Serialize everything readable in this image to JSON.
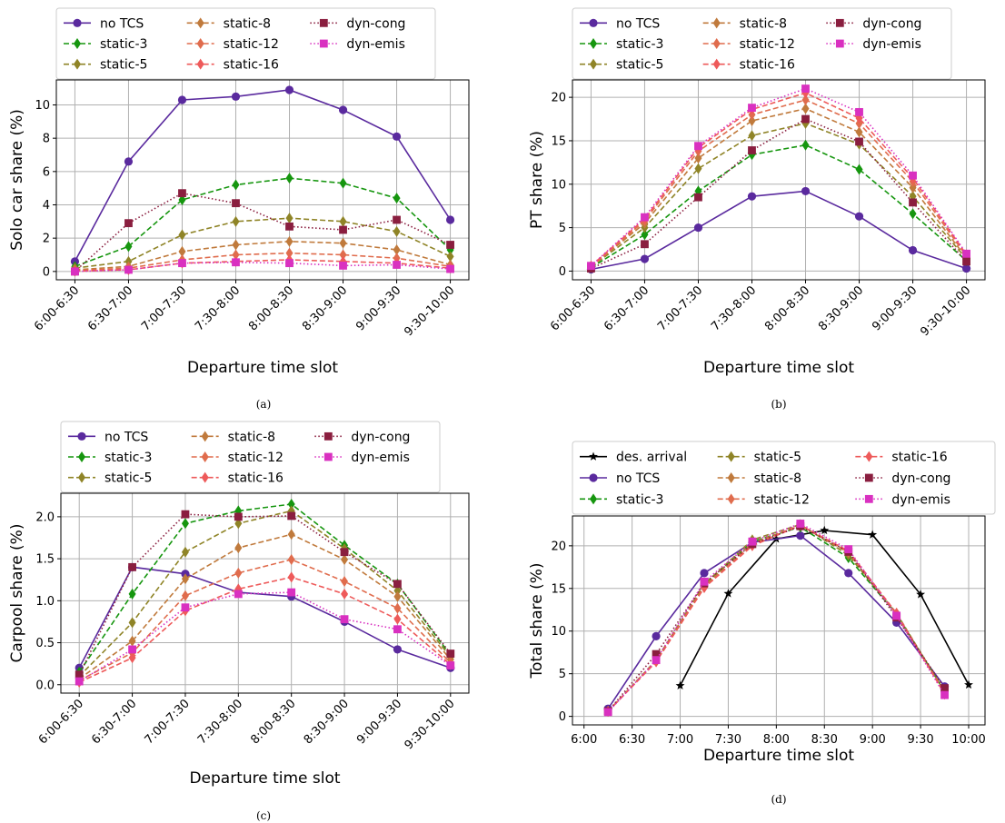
{
  "chart_data": [
    {
      "id": "a",
      "type": "line",
      "caption": "(a)",
      "xlabel": "Departure time slot",
      "ylabel": "Solo car share (%)",
      "categories": [
        "6:00-6:30",
        "6:30-7:00",
        "7:00-7:30",
        "7:30-8:00",
        "8:00-8:30",
        "8:30-9:00",
        "9:00-9:30",
        "9:30-10:00"
      ],
      "ylim": [
        -0.5,
        11.5
      ],
      "yticks": [
        0,
        2,
        4,
        6,
        8,
        10
      ],
      "yticklabels": [
        "0",
        "2",
        "4",
        "6",
        "8",
        "10"
      ],
      "grid": true,
      "legend_cols": 3,
      "series": [
        {
          "name": "no TCS",
          "color": "#5a2a9e",
          "dash": "solid",
          "marker": "circle",
          "values": [
            0.6,
            6.6,
            10.3,
            10.5,
            10.9,
            9.7,
            8.1,
            3.1
          ]
        },
        {
          "name": "static-3",
          "color": "#16960f",
          "dash": "dashed",
          "marker": "diamond",
          "values": [
            0.3,
            1.5,
            4.3,
            5.2,
            5.6,
            5.3,
            4.4,
            1.3
          ]
        },
        {
          "name": "static-5",
          "color": "#8f8427",
          "dash": "dashed",
          "marker": "diamond",
          "values": [
            0.2,
            0.6,
            2.2,
            3.0,
            3.2,
            3.0,
            2.4,
            0.9
          ]
        },
        {
          "name": "static-8",
          "color": "#c07a3c",
          "dash": "dashed",
          "marker": "diamond",
          "values": [
            0.1,
            0.3,
            1.2,
            1.6,
            1.8,
            1.7,
            1.3,
            0.4
          ]
        },
        {
          "name": "static-12",
          "color": "#e06c4d",
          "dash": "dashed",
          "marker": "diamond",
          "values": [
            0.05,
            0.2,
            0.7,
            1.0,
            1.1,
            1.0,
            0.8,
            0.3
          ]
        },
        {
          "name": "static-16",
          "color": "#ee5a5a",
          "dash": "dashed",
          "marker": "diamond",
          "values": [
            0.02,
            0.1,
            0.5,
            0.6,
            0.7,
            0.6,
            0.5,
            0.2
          ]
        },
        {
          "name": "dyn-cong",
          "color": "#8a1e3f",
          "dash": "dotted",
          "marker": "square",
          "values": [
            0.0,
            2.9,
            4.7,
            4.1,
            2.7,
            2.5,
            3.1,
            1.6
          ]
        },
        {
          "name": "dyn-emis",
          "color": "#d930c0",
          "dash": "dotted",
          "marker": "square",
          "values": [
            0.0,
            0.1,
            0.5,
            0.55,
            0.5,
            0.35,
            0.4,
            0.15
          ]
        }
      ]
    },
    {
      "id": "b",
      "type": "line",
      "caption": "(b)",
      "xlabel": "Departure time slot",
      "ylabel": "PT share (%)",
      "categories": [
        "6:00-6:30",
        "6:30-7:00",
        "7:00-7:30",
        "7:30-8:00",
        "8:00-8:30",
        "8:30-9:00",
        "9:00-9:30",
        "9:30-10:00"
      ],
      "ylim": [
        -1,
        22
      ],
      "yticks": [
        0,
        5,
        10,
        15,
        20
      ],
      "yticklabels": [
        "0",
        "5",
        "10",
        "15",
        "20"
      ],
      "grid": true,
      "legend_cols": 3,
      "series": [
        {
          "name": "no TCS",
          "color": "#5a2a9e",
          "dash": "solid",
          "marker": "circle",
          "values": [
            0.2,
            1.4,
            5.0,
            8.6,
            9.2,
            6.3,
            2.4,
            0.3
          ]
        },
        {
          "name": "static-3",
          "color": "#16960f",
          "dash": "dashed",
          "marker": "diamond",
          "values": [
            0.4,
            4.2,
            9.2,
            13.4,
            14.5,
            11.7,
            6.6,
            1.2
          ]
        },
        {
          "name": "static-5",
          "color": "#8f8427",
          "dash": "dashed",
          "marker": "diamond",
          "values": [
            0.5,
            5.0,
            11.8,
            15.6,
            17.0,
            14.6,
            8.6,
            1.4
          ]
        },
        {
          "name": "static-8",
          "color": "#c07a3c",
          "dash": "dashed",
          "marker": "diamond",
          "values": [
            0.5,
            5.5,
            13.0,
            17.3,
            18.7,
            16.0,
            9.6,
            1.5
          ]
        },
        {
          "name": "static-12",
          "color": "#e06c4d",
          "dash": "dashed",
          "marker": "diamond",
          "values": [
            0.5,
            5.8,
            13.8,
            18.0,
            19.7,
            17.0,
            10.3,
            1.7
          ]
        },
        {
          "name": "static-16",
          "color": "#ee5a5a",
          "dash": "dashed",
          "marker": "diamond",
          "values": [
            0.6,
            6.0,
            14.2,
            18.6,
            20.5,
            17.6,
            10.7,
            1.9
          ]
        },
        {
          "name": "dyn-cong",
          "color": "#8a1e3f",
          "dash": "dotted",
          "marker": "square",
          "values": [
            0.3,
            3.1,
            8.5,
            13.9,
            17.5,
            14.9,
            7.9,
            1.1
          ]
        },
        {
          "name": "dyn-emis",
          "color": "#d930c0",
          "dash": "dotted",
          "marker": "square",
          "values": [
            0.6,
            6.2,
            14.4,
            18.8,
            21.0,
            18.3,
            11.0,
            2.0
          ]
        }
      ]
    },
    {
      "id": "c",
      "type": "line",
      "caption": "(c)",
      "xlabel": "Departure time slot",
      "ylabel": "Carpool share (%)",
      "categories": [
        "6:00-6:30",
        "6:30-7:00",
        "7:00-7:30",
        "7:30-8:00",
        "8:00-8:30",
        "8:30-9:00",
        "9:00-9:30",
        "9:30-10:00"
      ],
      "ylim": [
        -0.1,
        2.28
      ],
      "yticks": [
        0.0,
        0.5,
        1.0,
        1.5,
        2.0
      ],
      "yticklabels": [
        "0.0",
        "0.5",
        "1.0",
        "1.5",
        "2.0"
      ],
      "grid": true,
      "legend_cols": 3,
      "series": [
        {
          "name": "no TCS",
          "color": "#5a2a9e",
          "dash": "solid",
          "marker": "circle",
          "values": [
            0.2,
            1.4,
            1.32,
            1.1,
            1.05,
            0.75,
            0.42,
            0.2
          ]
        },
        {
          "name": "static-3",
          "color": "#16960f",
          "dash": "dashed",
          "marker": "diamond",
          "values": [
            0.15,
            1.08,
            1.92,
            2.07,
            2.15,
            1.66,
            1.2,
            0.35
          ]
        },
        {
          "name": "static-5",
          "color": "#8f8427",
          "dash": "dashed",
          "marker": "diamond",
          "values": [
            0.1,
            0.74,
            1.58,
            1.92,
            2.07,
            1.62,
            1.12,
            0.33
          ]
        },
        {
          "name": "static-8",
          "color": "#c07a3c",
          "dash": "dashed",
          "marker": "diamond",
          "values": [
            0.07,
            0.52,
            1.26,
            1.63,
            1.79,
            1.49,
            1.05,
            0.3
          ]
        },
        {
          "name": "static-12",
          "color": "#e06c4d",
          "dash": "dashed",
          "marker": "diamond",
          "values": [
            0.05,
            0.38,
            1.06,
            1.33,
            1.49,
            1.23,
            0.91,
            0.26
          ]
        },
        {
          "name": "static-16",
          "color": "#ee5a5a",
          "dash": "dashed",
          "marker": "diamond",
          "values": [
            0.03,
            0.32,
            0.88,
            1.14,
            1.28,
            1.08,
            0.78,
            0.24
          ]
        },
        {
          "name": "dyn-cong",
          "color": "#8a1e3f",
          "dash": "dotted",
          "marker": "square",
          "values": [
            0.12,
            1.4,
            2.03,
            2.0,
            2.01,
            1.58,
            1.2,
            0.37
          ]
        },
        {
          "name": "dyn-emis",
          "color": "#d930c0",
          "dash": "dotted",
          "marker": "square",
          "values": [
            0.04,
            0.42,
            0.92,
            1.08,
            1.1,
            0.78,
            0.66,
            0.23
          ]
        }
      ]
    },
    {
      "id": "d",
      "type": "line",
      "caption": "(d)",
      "xlabel": "Departure time slot",
      "ylabel": "Total share (%)",
      "xtick_labels": [
        "6:00",
        "6:30",
        "7:00",
        "7:30",
        "8:00",
        "8:30",
        "9:00",
        "9:30",
        "10:00"
      ],
      "ylim": [
        -1,
        23.5
      ],
      "yticks": [
        0,
        5,
        10,
        15,
        20
      ],
      "yticklabels": [
        "0",
        "5",
        "10",
        "15",
        "20"
      ],
      "grid": true,
      "legend_cols": 3,
      "series": [
        {
          "name": "des. arrival",
          "color": "#000000",
          "dash": "solid",
          "marker": "star",
          "x": [
            7.0,
            7.5,
            8.0,
            8.5,
            9.0,
            9.5,
            10.0
          ],
          "values": [
            3.6,
            14.4,
            20.8,
            21.8,
            21.3,
            14.3,
            3.7
          ]
        },
        {
          "name": "no TCS",
          "color": "#5a2a9e",
          "dash": "solid",
          "marker": "circle",
          "x": [
            6.25,
            6.75,
            7.25,
            7.75,
            8.25,
            8.75,
            9.25,
            9.75
          ],
          "values": [
            0.9,
            9.4,
            16.8,
            20.4,
            21.2,
            16.8,
            11.0,
            3.5
          ]
        },
        {
          "name": "static-3",
          "color": "#16960f",
          "dash": "dashed",
          "marker": "diamond",
          "x": [
            6.25,
            6.75,
            7.25,
            7.75,
            8.25,
            8.75,
            9.25,
            9.75
          ],
          "values": [
            0.6,
            6.5,
            15.4,
            20.5,
            22.2,
            18.6,
            12.0,
            2.9
          ]
        },
        {
          "name": "static-5",
          "color": "#8f8427",
          "dash": "dashed",
          "marker": "diamond",
          "x": [
            6.25,
            6.75,
            7.25,
            7.75,
            8.25,
            8.75,
            9.25,
            9.75
          ],
          "values": [
            0.6,
            6.6,
            15.5,
            20.7,
            22.5,
            18.9,
            12.1,
            2.9
          ]
        },
        {
          "name": "static-8",
          "color": "#c07a3c",
          "dash": "dashed",
          "marker": "diamond",
          "x": [
            6.25,
            6.75,
            7.25,
            7.75,
            8.25,
            8.75,
            9.25,
            9.75
          ],
          "values": [
            0.6,
            6.5,
            15.3,
            20.3,
            22.4,
            19.2,
            12.0,
            2.8
          ]
        },
        {
          "name": "static-12",
          "color": "#e06c4d",
          "dash": "dashed",
          "marker": "diamond",
          "x": [
            6.25,
            6.75,
            7.25,
            7.75,
            8.25,
            8.75,
            9.25,
            9.75
          ],
          "values": [
            0.6,
            6.4,
            15.1,
            20.1,
            22.4,
            19.3,
            12.0,
            2.7
          ]
        },
        {
          "name": "static-16",
          "color": "#ee5a5a",
          "dash": "dashed",
          "marker": "diamond",
          "x": [
            6.25,
            6.75,
            7.25,
            7.75,
            8.25,
            8.75,
            9.25,
            9.75
          ],
          "values": [
            0.6,
            6.4,
            15.1,
            20.0,
            22.4,
            19.4,
            12.1,
            2.6
          ]
        },
        {
          "name": "dyn-cong",
          "color": "#8a1e3f",
          "dash": "dotted",
          "marker": "square",
          "x": [
            6.25,
            6.75,
            7.25,
            7.75,
            8.25,
            8.75,
            9.25,
            9.75
          ],
          "values": [
            0.6,
            7.3,
            15.6,
            20.2,
            22.3,
            19.3,
            11.6,
            3.3
          ]
        },
        {
          "name": "dyn-emis",
          "color": "#d930c0",
          "dash": "dotted",
          "marker": "square",
          "x": [
            6.25,
            6.75,
            7.25,
            7.75,
            8.25,
            8.75,
            9.25,
            9.75
          ],
          "values": [
            0.5,
            6.6,
            15.8,
            20.5,
            22.6,
            19.6,
            11.8,
            2.5
          ]
        }
      ]
    }
  ]
}
